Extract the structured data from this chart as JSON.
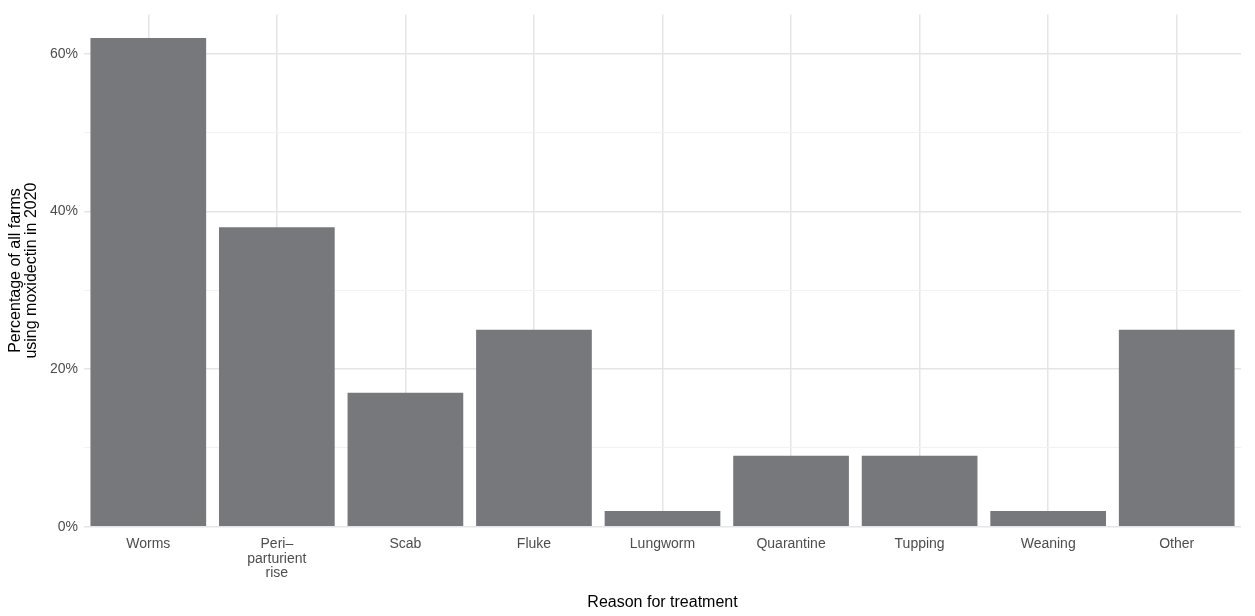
{
  "chart_data": {
    "type": "bar",
    "xlabel": "Reason for treatment",
    "ylabel": "Percentage of all farms\nusing moxidectin in 2020",
    "categories": [
      "Worms",
      "Peri–\nparturient\nrise",
      "Scab",
      "Fluke",
      "Lungworm",
      "Quarantine",
      "Tupping",
      "Weaning",
      "Other"
    ],
    "values": [
      62,
      38,
      17,
      25,
      2,
      9,
      9,
      2,
      25
    ],
    "color": "#77787c",
    "ylim": [
      0,
      65
    ],
    "yticks": [
      {
        "value": 0,
        "label": "0%"
      },
      {
        "value": 10,
        "label": null
      },
      {
        "value": 20,
        "label": "20%"
      },
      {
        "value": 30,
        "label": null
      },
      {
        "value": 40,
        "label": "40%"
      },
      {
        "value": 50,
        "label": null
      },
      {
        "value": 60,
        "label": "60%"
      }
    ],
    "grid": true,
    "legend": false
  }
}
